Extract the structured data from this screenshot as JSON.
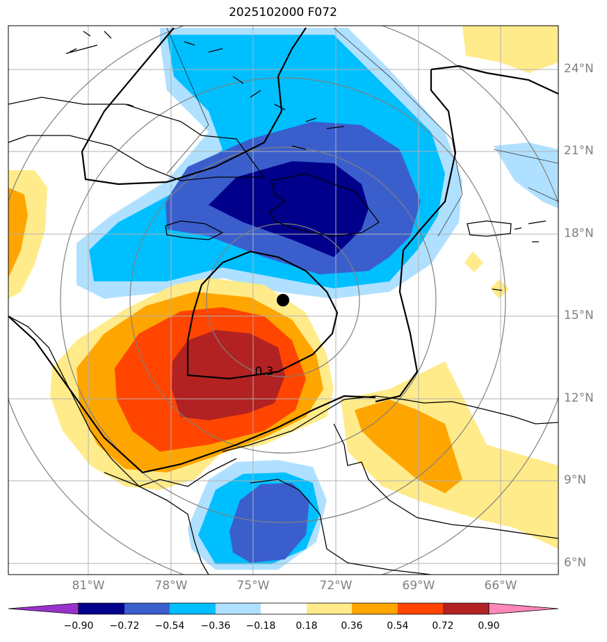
{
  "title": "2025102000 F072",
  "lat_labels": [
    "24°N",
    "21°N",
    "18°N",
    "15°N",
    "12°N",
    "9°N",
    "6°N"
  ],
  "lon_labels": [
    "81°W",
    "78°W",
    "75°W",
    "72°W",
    "69°W",
    "66°W"
  ],
  "contour_label": "0.3",
  "colorbar": {
    "labels": [
      "−0.90",
      "−0.72",
      "−0.54",
      "−0.36",
      "−0.18",
      "0.18",
      "0.36",
      "0.54",
      "0.72",
      "0.90"
    ],
    "colors": [
      "#9932cc",
      "#00008b",
      "#3a5fcd",
      "#00bfff",
      "#b0e0ff",
      "#ffffff",
      "#ffeb8a",
      "#ffa500",
      "#ff4500",
      "#b22222",
      "#ff88b8"
    ]
  },
  "colors": {
    "coastline": "#000000",
    "gridline": "#b0b0b0",
    "range_ring": "#808080",
    "storm_center": "#000000"
  }
}
